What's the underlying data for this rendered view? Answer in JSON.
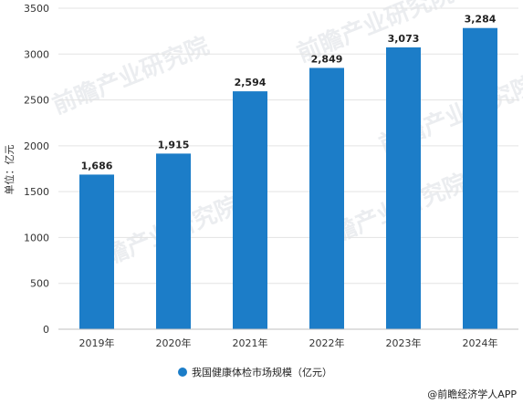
{
  "chart_data": {
    "type": "bar",
    "categories": [
      "2019年",
      "2020年",
      "2021年",
      "2022年",
      "2023年",
      "2024年"
    ],
    "series": [
      {
        "name": "我国健康体检市场规模（亿元）",
        "values": [
          1686,
          1915,
          2594,
          2849,
          3073,
          3284
        ]
      }
    ],
    "data_labels": [
      "1,686",
      "1,915",
      "2,594",
      "2,849",
      "3,073",
      "3,284"
    ],
    "ylabel": "单位：亿元",
    "xlabel": "",
    "ylim": [
      0,
      3500
    ],
    "yticks": [
      0,
      500,
      1000,
      1500,
      2000,
      2500,
      3000,
      3500
    ],
    "ytick_labels": [
      "0",
      "500",
      "1000",
      "1500",
      "2000",
      "2500",
      "3000",
      "3500"
    ],
    "grid": true,
    "legend_position": "bottom",
    "bar_color": "#1c7dc8"
  },
  "watermark": "前瞻产业研究院",
  "source": "@前瞻经济学人APP"
}
